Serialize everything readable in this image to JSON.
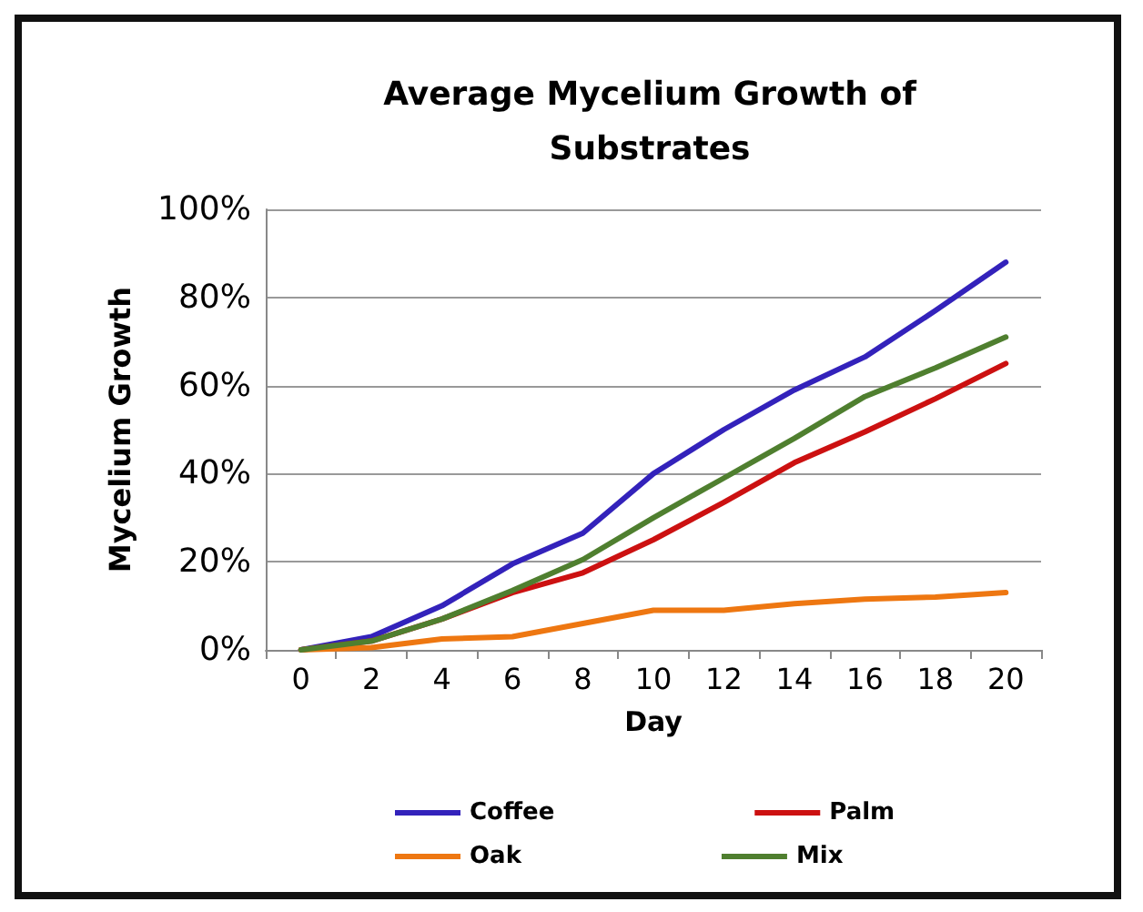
{
  "chart_data": {
    "type": "line",
    "title": "Average Mycelium Growth of\nSubstrates",
    "xlabel": "Day",
    "ylabel": "Mycelium Growth",
    "categories": [
      "0",
      "2",
      "4",
      "6",
      "8",
      "10",
      "12",
      "14",
      "16",
      "18",
      "20"
    ],
    "series": [
      {
        "name": "Coffee",
        "color": "#3322bb",
        "values": [
          0,
          3,
          10,
          19.5,
          26.5,
          40,
          50,
          59,
          66.5,
          77,
          88
        ]
      },
      {
        "name": "Palm",
        "color": "#cc1111",
        "values": [
          0,
          2,
          7,
          13,
          17.5,
          25,
          33.5,
          42.5,
          49.5,
          57,
          65
        ]
      },
      {
        "name": "Oak",
        "color": "#ee7711",
        "values": [
          0,
          0.5,
          2.5,
          3,
          6,
          9,
          9,
          10.5,
          11.5,
          12,
          13
        ]
      },
      {
        "name": "Mix",
        "color": "#4f7f2f",
        "values": [
          0,
          2,
          7,
          13.5,
          20.5,
          30,
          39,
          48,
          57.5,
          64,
          71
        ]
      }
    ],
    "ylim": [
      0,
      100
    ],
    "yticks": [
      {
        "value": 0,
        "label": "0%"
      },
      {
        "value": 20,
        "label": "20%"
      },
      {
        "value": 40,
        "label": "40%"
      },
      {
        "value": 60,
        "label": "60%"
      },
      {
        "value": 80,
        "label": "80%"
      },
      {
        "value": 100,
        "label": "100%"
      }
    ],
    "grid": "y",
    "legend": "bottom",
    "marker": "none",
    "line_style": "solid"
  }
}
